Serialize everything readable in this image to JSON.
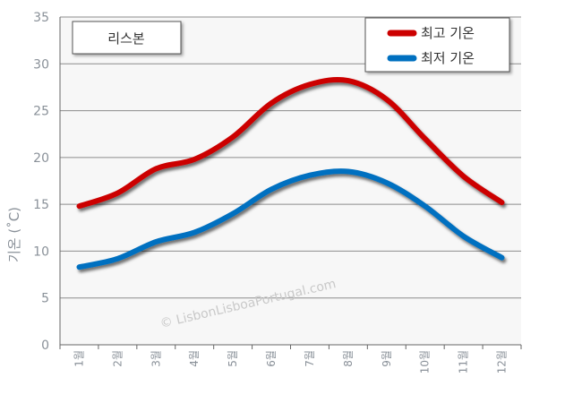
{
  "chart_data": {
    "type": "line",
    "title": "리스본",
    "ylabel": "기온 (˚C)",
    "xlabel": "",
    "ylim": [
      0,
      35
    ],
    "yticks": [
      0,
      5,
      10,
      15,
      20,
      25,
      30,
      35
    ],
    "grid": true,
    "legend_position": "top-right",
    "categories": [
      "1월",
      "2월",
      "3월",
      "4월",
      "5월",
      "6월",
      "7월",
      "8월",
      "9월",
      "10월",
      "11월",
      "12월"
    ],
    "series": [
      {
        "name": "최고 기온",
        "color": "#cc0000",
        "values": [
          14.8,
          16.2,
          18.8,
          19.8,
          22.2,
          25.8,
          27.8,
          28.2,
          26.2,
          22.0,
          18.0,
          15.2
        ]
      },
      {
        "name": "최저 기온",
        "color": "#0070c0",
        "values": [
          8.3,
          9.2,
          11.0,
          12.0,
          14.0,
          16.6,
          18.1,
          18.5,
          17.3,
          14.8,
          11.6,
          9.3
        ]
      }
    ]
  },
  "watermark": "© LisbonLisboaPortugal.com"
}
